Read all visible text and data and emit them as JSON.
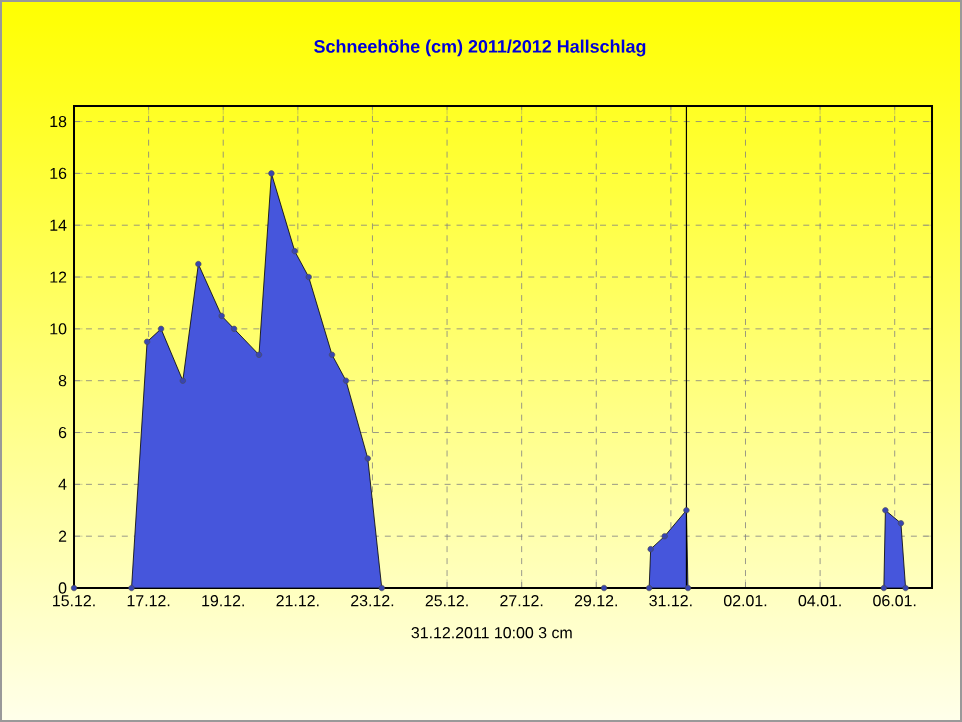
{
  "chart_data": {
    "type": "area",
    "title": "Schneehöhe (cm)  2011/2012      Hallschlag",
    "x": [
      "2011-12-15T00:00",
      "2011-12-16T13:00",
      "2011-12-16T23:00",
      "2011-12-17T08:00",
      "2011-12-17T22:00",
      "2011-12-18T08:00",
      "2011-12-18T23:00",
      "2011-12-19T07:00",
      "2011-12-19T23:00",
      "2011-12-20T07:00",
      "2011-12-20T22:00",
      "2011-12-21T07:00",
      "2011-12-21T22:00",
      "2011-12-22T07:00",
      "2011-12-22T21:00",
      "2011-12-23T06:00",
      "2011-12-29T05:00",
      "2011-12-30T10:00",
      "2011-12-30T11:00",
      "2011-12-30T20:00",
      "2011-12-31T10:00",
      "2011-12-31T11:00",
      "2012-01-05T17:00",
      "2012-01-05T18:00",
      "2012-01-06T04:00",
      "2012-01-06T07:00"
    ],
    "values": [
      0,
      0,
      9.5,
      10,
      8,
      12.5,
      10.5,
      10,
      9,
      16,
      13,
      12,
      9,
      8,
      5,
      0,
      0,
      0,
      1.5,
      2,
      3,
      0,
      0,
      3,
      2.5,
      0
    ],
    "color": "#4656dc",
    "marker": "circle",
    "grid": true,
    "xlim": [
      "2011-12-15T00:00",
      "2012-01-07T00:00"
    ],
    "xticks": [
      {
        "value": "2011-12-15",
        "label": "15.12."
      },
      {
        "value": "2011-12-17",
        "label": "17.12."
      },
      {
        "value": "2011-12-19",
        "label": "19.12."
      },
      {
        "value": "2011-12-21",
        "label": "21.12."
      },
      {
        "value": "2011-12-23",
        "label": "23.12."
      },
      {
        "value": "2011-12-25",
        "label": "25.12."
      },
      {
        "value": "2011-12-27",
        "label": "27.12."
      },
      {
        "value": "2011-12-29",
        "label": "29.12."
      },
      {
        "value": "2011-12-31",
        "label": "31.12."
      },
      {
        "value": "2012-01-02",
        "label": "02.01."
      },
      {
        "value": "2012-01-04",
        "label": "04.01."
      },
      {
        "value": "2012-01-06",
        "label": "06.01."
      }
    ],
    "ylim": [
      0,
      18.6
    ],
    "yticks": [
      0,
      2,
      4,
      6,
      8,
      10,
      12,
      14,
      16,
      18
    ],
    "ref_lines": [
      {
        "axis": "x",
        "value": "2011-12-31T10:00",
        "label": "31.12.2011  10:00   3 cm",
        "color": "#000000"
      }
    ]
  }
}
